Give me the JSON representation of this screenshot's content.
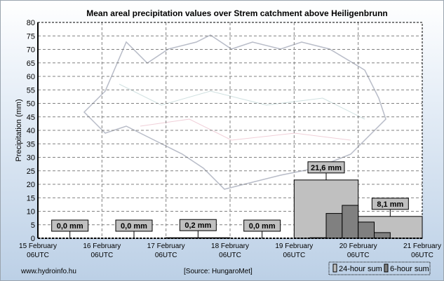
{
  "chart_data": {
    "type": "bar",
    "title": "Mean areal precipitation values over Strem catchment above Heiligenbrunn",
    "ylabel": "Precipitation (mm)",
    "xlabel": "",
    "ylim": [
      0,
      80
    ],
    "yticks": [
      0,
      5,
      10,
      15,
      20,
      25,
      30,
      35,
      40,
      45,
      50,
      55,
      60,
      65,
      70,
      75,
      80
    ],
    "grid": true,
    "xtick_labels": [
      [
        "15 February",
        "06UTC"
      ],
      [
        "16 February",
        "06UTC"
      ],
      [
        "17 February",
        "06UTC"
      ],
      [
        "18 February",
        "06UTC"
      ],
      [
        "19 February",
        "06UTC"
      ],
      [
        "20 February",
        "06UTC"
      ],
      [
        "21 February",
        "06UTC"
      ]
    ],
    "series": [
      {
        "name": "24-hour sum",
        "color": "#c0c0c0",
        "values": [
          0.0,
          0.0,
          0.2,
          0.0,
          21.6,
          8.1
        ],
        "labels": [
          "0,0 mm",
          "0,0 mm",
          "0,2 mm",
          "0,0 mm",
          "21,6 mm",
          "8,1 mm"
        ]
      },
      {
        "name": "6-hour sum",
        "color": "#808080",
        "start_day": 4,
        "values": [
          0.0,
          0.2,
          9.2,
          12.2,
          6.0,
          2.1,
          0.0,
          0.0
        ]
      }
    ],
    "legend": "bottom-right"
  },
  "footer": {
    "website": "www.hydroinfo.hu",
    "source": "[Source: HungaroMet]"
  }
}
